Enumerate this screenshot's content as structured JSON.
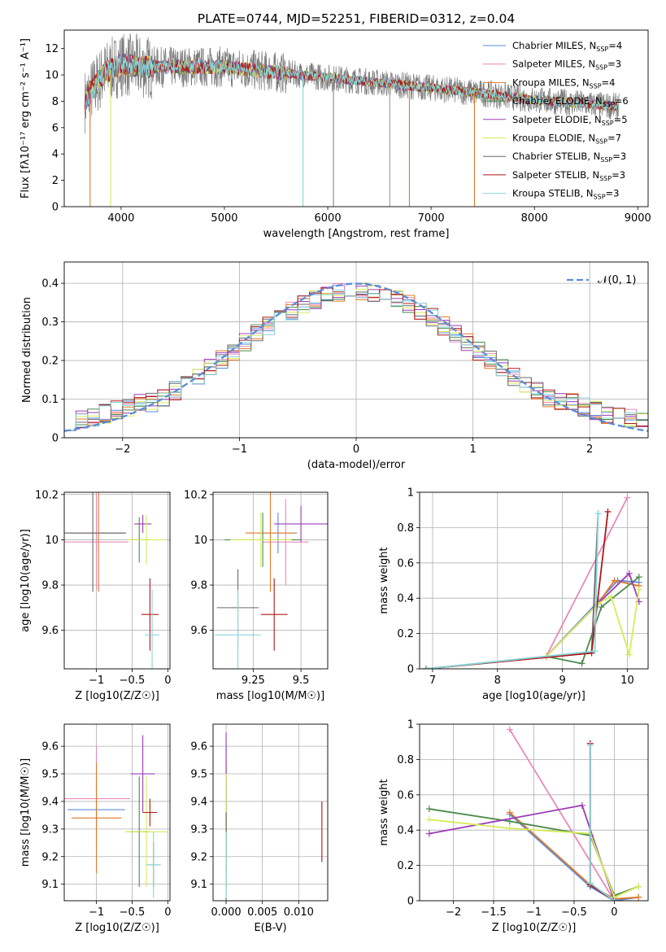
{
  "colors": [
    "#5b8bd8",
    "#e88ab8",
    "#e07a2a",
    "#4a8a4a",
    "#9a3cb8",
    "#d6ec5a",
    "#6a6a6a",
    "#b01818",
    "#88d6dc"
  ],
  "chart_data": [
    {
      "id": "spectrum",
      "type": "line",
      "title": "PLATE=0744, MJD=52251, FIBERID=0312, z=0.04",
      "xlabel": "wavelength [Angstrom, rest frame]",
      "ylabel": "Flux [fλ10⁻¹⁷ erg cm⁻² s⁻¹ A⁻¹]",
      "xlim": [
        3450,
        9100
      ],
      "ylim": [
        0,
        13.4
      ],
      "xticks": [
        4000,
        5000,
        6000,
        7000,
        8000,
        9000
      ],
      "yticks": [
        0,
        2,
        4,
        6,
        8,
        10,
        12
      ],
      "grid": false,
      "legend_position": "top-right",
      "continuum": {
        "x": [
          3650,
          3750,
          3850,
          4000,
          4200,
          4500,
          5000,
          5500,
          6000,
          6500,
          7000,
          7500,
          8000,
          8500,
          8800
        ],
        "y": [
          8.0,
          9.2,
          10.2,
          10.8,
          10.6,
          10.6,
          10.6,
          10.2,
          9.8,
          9.4,
          9.0,
          8.6,
          8.1,
          7.8,
          7.6
        ]
      },
      "data_range": [
        3650,
        8820
      ],
      "series": [
        {
          "name": "Chabrier MILES, N_SSP=4"
        },
        {
          "name": "Salpeter MILES, N_SSP=3"
        },
        {
          "name": "Kroupa MILES, N_SSP=4"
        },
        {
          "name": "Chabrier ELODIE, N_SSP=6"
        },
        {
          "name": "Salpeter ELODIE, N_SSP=5"
        },
        {
          "name": "Kroupa ELODIE, N_SSP=7"
        },
        {
          "name": "Chabrier STELIB, N_SSP=3"
        },
        {
          "name": "Salpeter STELIB, N_SSP=3"
        },
        {
          "name": "Kroupa STELIB, N_SSP=3"
        }
      ]
    },
    {
      "id": "residuals",
      "type": "histogram",
      "xlabel": "(data-model)/error",
      "ylabel": "Normed distribution",
      "xlim": [
        -2.5,
        2.5
      ],
      "ylim": [
        0,
        0.455
      ],
      "xticks": [
        -2,
        -1,
        0,
        1,
        2
      ],
      "yticks": [
        0.0,
        0.1,
        0.2,
        0.3,
        0.4
      ],
      "grid": true,
      "legend_position": "top-right",
      "reference_curve": {
        "name": "N(0,1)",
        "mean": 0,
        "sigma": 1
      },
      "bin_width": 0.1
    },
    {
      "id": "age_vs_Z",
      "type": "errorbar",
      "xlabel": "Z [log10(Z/Z☉)]",
      "ylabel": "age  [log10(age/yr)]",
      "xlim": [
        -1.45,
        0.03
      ],
      "ylim": [
        9.43,
        10.21
      ],
      "xticks": [
        -1.0,
        -0.5,
        0.0
      ],
      "yticks": [
        9.6,
        9.8,
        10.0,
        10.2
      ],
      "grid": true,
      "points": [
        {
          "x": -1.0,
          "xerr": 0.42,
          "y": 10.03,
          "yerr": 0.09
        },
        {
          "x": -1.0,
          "xerr": 0.45,
          "y": 9.99,
          "yerr": 0.21
        },
        {
          "x": -0.97,
          "xerr": 0.38,
          "y": 10.03,
          "yerr": 0.26
        },
        {
          "x": -0.4,
          "xerr": 0.15,
          "y": 10.0,
          "yerr": 0.1
        },
        {
          "x": -0.35,
          "xerr": 0.12,
          "y": 10.07,
          "yerr": 0.04
        },
        {
          "x": -0.3,
          "xerr": 0.27,
          "y": 10.0,
          "yerr": 0.11
        },
        {
          "x": -1.05,
          "xerr": 0.45,
          "y": 10.03,
          "yerr": 0.26
        },
        {
          "x": -0.25,
          "xerr": 0.12,
          "y": 9.67,
          "yerr": 0.16
        },
        {
          "x": -0.22,
          "xerr": 0.1,
          "y": 9.58,
          "yerr": 0.2
        }
      ]
    },
    {
      "id": "age_vs_mass",
      "type": "errorbar",
      "xlabel": "mass [log10(M/M☉)]",
      "ylabel": "",
      "xlim": [
        9.04,
        9.64
      ],
      "ylim": [
        9.43,
        10.21
      ],
      "xticks": [
        9.25,
        9.5
      ],
      "yticks": [
        9.6,
        9.8,
        10.0,
        10.2
      ],
      "grid": true,
      "points": [
        {
          "x": 9.38,
          "xerr": 0.1,
          "y": 10.03,
          "yerr": 0.09
        },
        {
          "x": 9.42,
          "xerr": 0.12,
          "y": 9.99,
          "yerr": 0.19
        },
        {
          "x": 9.34,
          "xerr": 0.13,
          "y": 10.03,
          "yerr": 0.26
        },
        {
          "x": 9.3,
          "xerr": 0.2,
          "y": 10.0,
          "yerr": 0.12
        },
        {
          "x": 9.5,
          "xerr": 0.14,
          "y": 10.07,
          "yerr": 0.08
        },
        {
          "x": 9.29,
          "xerr": 0.16,
          "y": 10.0,
          "yerr": 0.12
        },
        {
          "x": 9.17,
          "xerr": 0.11,
          "y": 9.7,
          "yerr": 0.17
        },
        {
          "x": 9.36,
          "xerr": 0.07,
          "y": 9.67,
          "yerr": 0.16
        },
        {
          "x": 9.17,
          "xerr": 0.12,
          "y": 9.58,
          "yerr": 0.2
        }
      ]
    },
    {
      "id": "weight_vs_age",
      "type": "line",
      "xlabel": "age  [log10(age/yr)]",
      "ylabel": "mass weight",
      "xlim": [
        6.8,
        10.32
      ],
      "ylim": [
        0,
        1.0
      ],
      "xticks": [
        7,
        8,
        9,
        10
      ],
      "yticks": [
        0.0,
        0.2,
        0.4,
        0.6,
        0.8,
        1.0
      ],
      "grid": true,
      "series": [
        {
          "x": [
            6.9,
            8.75,
            9.55,
            9.85,
            10.18
          ],
          "y": [
            0.0,
            0.07,
            0.38,
            0.5,
            0.49
          ]
        },
        {
          "x": [
            6.9,
            8.75,
            10.0
          ],
          "y": [
            0.0,
            0.07,
            0.97
          ]
        },
        {
          "x": [
            6.9,
            8.75,
            9.55,
            9.8,
            10.18
          ],
          "y": [
            0.0,
            0.07,
            0.37,
            0.5,
            0.47
          ]
        },
        {
          "x": [
            6.9,
            8.75,
            9.3,
            9.6,
            10.18
          ],
          "y": [
            0.0,
            0.07,
            0.03,
            0.35,
            0.52
          ]
        },
        {
          "x": [
            6.9,
            8.75,
            9.55,
            10.03,
            10.18
          ],
          "y": [
            0.0,
            0.07,
            0.37,
            0.54,
            0.38
          ]
        },
        {
          "x": [
            6.9,
            8.75,
            9.55,
            9.75,
            10.03,
            10.18
          ],
          "y": [
            0.0,
            0.07,
            0.37,
            0.41,
            0.08,
            0.45
          ]
        },
        {
          "x": [
            6.9,
            9.45,
            9.55
          ],
          "y": [
            0.0,
            0.09,
            0.88
          ]
        },
        {
          "x": [
            6.9,
            9.45,
            9.7
          ],
          "y": [
            0.0,
            0.09,
            0.89
          ]
        },
        {
          "x": [
            6.9,
            9.5,
            9.55
          ],
          "y": [
            0.0,
            0.1,
            0.88
          ]
        }
      ]
    },
    {
      "id": "mass_vs_Z",
      "type": "errorbar",
      "xlabel": "Z [log10(Z/Z☉)]",
      "ylabel": "mass [log10(M/M☉)]",
      "xlim": [
        -1.45,
        0.03
      ],
      "ylim": [
        9.04,
        9.68
      ],
      "xticks": [
        -1.0,
        -0.5,
        0.0
      ],
      "yticks": [
        9.1,
        9.2,
        9.3,
        9.4,
        9.5,
        9.6
      ],
      "grid": true,
      "points": [
        {
          "x": -1.0,
          "xerr": 0.4,
          "y": 9.37,
          "yerr": 0.1
        },
        {
          "x": -1.0,
          "xerr": 0.47,
          "y": 9.41,
          "yerr": 0.19
        },
        {
          "x": -1.0,
          "xerr": 0.35,
          "y": 9.34,
          "yerr": 0.2
        },
        {
          "x": -0.4,
          "xerr": 0.14,
          "y": 9.29,
          "yerr": 0.2
        },
        {
          "x": -0.35,
          "xerr": 0.17,
          "y": 9.5,
          "yerr": 0.14
        },
        {
          "x": -0.3,
          "xerr": 0.3,
          "y": 9.29,
          "yerr": 0.2
        },
        {
          "x": -0.2,
          "xerr": 0.1,
          "y": 9.17,
          "yerr": 0.08
        },
        {
          "x": -0.25,
          "xerr": 0.1,
          "y": 9.36,
          "yerr": 0.05
        },
        {
          "x": -0.2,
          "xerr": 0.1,
          "y": 9.17,
          "yerr": 0.12
        }
      ]
    },
    {
      "id": "mass_vs_ebv",
      "type": "errorbar",
      "xlabel": "E(B-V)",
      "ylabel": "",
      "xlim": [
        -0.0018,
        0.014
      ],
      "ylim": [
        9.04,
        9.68
      ],
      "xticks": [
        0.0,
        0.005,
        0.01
      ],
      "xticklabels": [
        "0.000",
        "0.005",
        "0.010"
      ],
      "yticks": [
        9.1,
        9.2,
        9.3,
        9.4,
        9.5,
        9.6
      ],
      "grid": true,
      "points": [
        {
          "x": 0.0,
          "y": 9.37,
          "yerr": 0.1
        },
        {
          "x": 0.0,
          "y": 9.41,
          "yerr": 0.19
        },
        {
          "x": 0.0,
          "y": 9.34,
          "yerr": 0.2
        },
        {
          "x": 0.0,
          "y": 9.29,
          "yerr": 0.2
        },
        {
          "x": 0.0,
          "y": 9.5,
          "yerr": 0.15
        },
        {
          "x": 0.0,
          "y": 9.29,
          "yerr": 0.21
        },
        {
          "x": 0.0,
          "y": 9.2,
          "yerr": 0.16
        },
        {
          "x": 0.0132,
          "y": 9.29,
          "yerr": 0.11
        },
        {
          "x": 0.0,
          "y": 9.17,
          "yerr": 0.12
        }
      ]
    },
    {
      "id": "weight_vs_Z",
      "type": "line",
      "xlabel": "Z [log10(Z/Z☉)]",
      "ylabel": "mass weight",
      "xlim": [
        -2.42,
        0.42
      ],
      "ylim": [
        0,
        1.0
      ],
      "xticks": [
        -2.0,
        -1.5,
        -1.0,
        -0.5,
        0.0
      ],
      "yticks": [
        0.0,
        0.2,
        0.4,
        0.6,
        0.8,
        1.0
      ],
      "grid": true,
      "series": [
        {
          "x": [
            -1.3,
            -0.3,
            0.0,
            0.3
          ],
          "y": [
            0.49,
            0.08,
            0.0,
            0.02
          ]
        },
        {
          "x": [
            -1.3,
            0.0
          ],
          "y": [
            0.97,
            0.0
          ]
        },
        {
          "x": [
            -1.3,
            -0.3,
            0.0,
            0.3
          ],
          "y": [
            0.5,
            0.09,
            0.01,
            0.02
          ]
        },
        {
          "x": [
            -2.3,
            -1.3,
            -0.3,
            0.0,
            0.3
          ],
          "y": [
            0.52,
            0.45,
            0.37,
            0.03,
            0.08
          ]
        },
        {
          "x": [
            -2.3,
            -0.4,
            0.0
          ],
          "y": [
            0.38,
            0.54,
            0.0
          ]
        },
        {
          "x": [
            -2.3,
            -1.3,
            -0.3,
            0.0,
            0.3
          ],
          "y": [
            0.46,
            0.41,
            0.38,
            0.02,
            0.08
          ]
        },
        {
          "x": [
            -0.3,
            -0.3,
            0.0
          ],
          "y": [
            0.89,
            0.09,
            0.0
          ]
        },
        {
          "x": [
            -0.3,
            -0.3,
            0.0
          ],
          "y": [
            0.89,
            0.09,
            0.0
          ]
        },
        {
          "x": [
            -0.3,
            -0.3,
            0.0
          ],
          "y": [
            0.88,
            0.1,
            0.0
          ]
        }
      ]
    }
  ]
}
